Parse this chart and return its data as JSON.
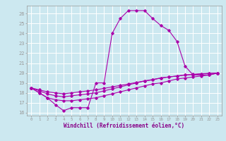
{
  "xlabel": "Windchill (Refroidissement éolien,°C)",
  "bg_color": "#cce8f0",
  "grid_color": "#ffffff",
  "line_color": "#aa00aa",
  "xlim": [
    -0.5,
    23.5
  ],
  "ylim": [
    15.7,
    26.8
  ],
  "xticks": [
    0,
    1,
    2,
    3,
    4,
    5,
    6,
    7,
    8,
    9,
    10,
    11,
    12,
    13,
    14,
    15,
    16,
    17,
    18,
    19,
    20,
    21,
    22,
    23
  ],
  "yticks": [
    16,
    17,
    18,
    19,
    20,
    21,
    22,
    23,
    24,
    25,
    26
  ],
  "hours": [
    0,
    1,
    2,
    3,
    4,
    5,
    6,
    7,
    8,
    9,
    10,
    11,
    12,
    13,
    14,
    15,
    16,
    17,
    18,
    19,
    20,
    21,
    22,
    23
  ],
  "temp_actual": [
    18.5,
    18.0,
    17.5,
    16.8,
    16.2,
    16.5,
    16.5,
    16.5,
    19.0,
    19.0,
    24.0,
    25.5,
    26.3,
    26.3,
    26.3,
    25.5,
    24.8,
    24.3,
    23.2,
    20.7,
    19.8,
    19.8,
    19.8,
    20.0
  ],
  "temp_line2": [
    18.5,
    18.0,
    17.5,
    17.3,
    17.2,
    17.2,
    17.3,
    17.4,
    17.5,
    17.7,
    17.9,
    18.1,
    18.3,
    18.5,
    18.7,
    18.9,
    19.0,
    19.2,
    19.4,
    19.5,
    19.6,
    19.7,
    19.8,
    20.0
  ],
  "temp_line3": [
    18.5,
    18.2,
    17.9,
    17.7,
    17.6,
    17.7,
    17.8,
    17.9,
    18.0,
    18.2,
    18.4,
    18.6,
    18.8,
    19.0,
    19.2,
    19.3,
    19.5,
    19.6,
    19.7,
    19.8,
    19.85,
    19.9,
    19.95,
    20.0
  ],
  "temp_line4": [
    18.5,
    18.3,
    18.1,
    18.0,
    17.9,
    18.0,
    18.1,
    18.2,
    18.3,
    18.45,
    18.6,
    18.75,
    18.9,
    19.05,
    19.2,
    19.35,
    19.5,
    19.6,
    19.7,
    19.8,
    19.87,
    19.93,
    19.97,
    20.0
  ],
  "tick_color": "#880088",
  "xlabel_fontsize": 5.5,
  "ylabel_fontsize": 5.5,
  "marker_size": 1.8,
  "line_width": 0.8
}
